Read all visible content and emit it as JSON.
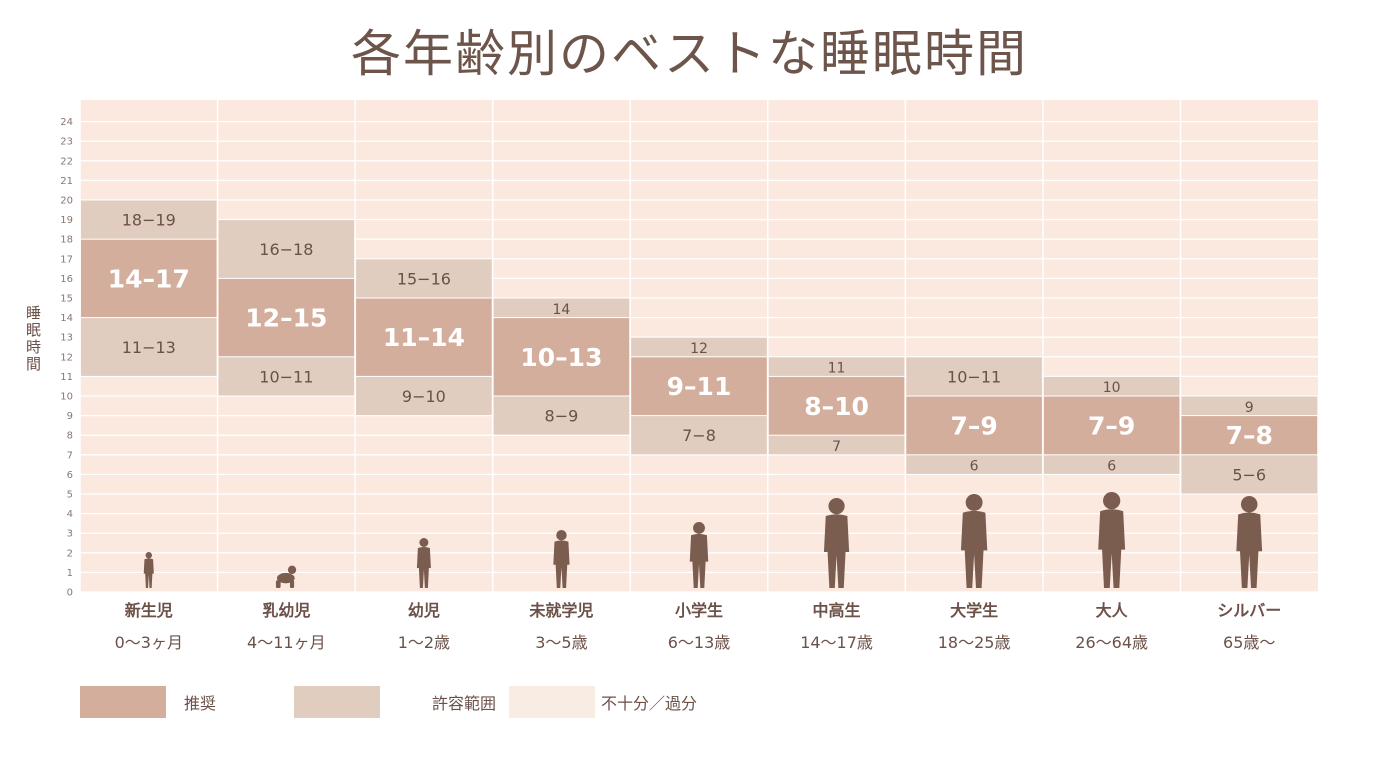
{
  "chart_data": {
    "type": "bar",
    "title": "各年齢別のベストな睡眠時間",
    "ylabel": "睡眠時間",
    "ylim": [
      0,
      24
    ],
    "yticks": [
      0,
      1,
      2,
      3,
      4,
      5,
      6,
      7,
      8,
      9,
      10,
      11,
      12,
      13,
      14,
      15,
      16,
      17,
      18,
      19,
      20,
      21,
      22,
      23,
      24
    ],
    "grid": true,
    "legend_position": "bottom-left",
    "legend": [
      {
        "key": "recommended",
        "label": "推奨",
        "color": "#d4ae9c"
      },
      {
        "key": "acceptable",
        "label": "許容範囲",
        "color": "#e0cdc0"
      },
      {
        "key": "not_recommended",
        "label": "不十分／過分",
        "color": "#f8ece3"
      }
    ],
    "categories": [
      {
        "name": "新生児",
        "age": "0〜3ヶ月",
        "recommended": [
          14,
          17
        ],
        "recommended_label": "14–17",
        "acceptable_low": [
          11,
          13
        ],
        "acceptable_low_label": "11−13",
        "acceptable_high": [
          18,
          19
        ],
        "acceptable_high_label": "18−19",
        "icon": "newborn-silhouette"
      },
      {
        "name": "乳幼児",
        "age": "4〜11ヶ月",
        "recommended": [
          12,
          15
        ],
        "recommended_label": "12–15",
        "acceptable_low": [
          10,
          11
        ],
        "acceptable_low_label": "10−11",
        "acceptable_high": [
          16,
          18
        ],
        "acceptable_high_label": "16−18",
        "icon": "crawling-baby-silhouette"
      },
      {
        "name": "幼児",
        "age": "1〜2歳",
        "recommended": [
          11,
          14
        ],
        "recommended_label": "11–14",
        "acceptable_low": [
          9,
          10
        ],
        "acceptable_low_label": "9−10",
        "acceptable_high": [
          15,
          16
        ],
        "acceptable_high_label": "15−16",
        "icon": "toddler-silhouette"
      },
      {
        "name": "未就学児",
        "age": "3〜5歳",
        "recommended": [
          10,
          13
        ],
        "recommended_label": "10–13",
        "acceptable_low": [
          8,
          9
        ],
        "acceptable_low_label": "8−9",
        "acceptable_high": [
          14,
          14
        ],
        "acceptable_high_label": "14",
        "icon": "preschooler-silhouette"
      },
      {
        "name": "小学生",
        "age": "6〜13歳",
        "recommended": [
          9,
          11
        ],
        "recommended_label": "9–11",
        "acceptable_low": [
          7,
          8
        ],
        "acceptable_low_label": "7−8",
        "acceptable_high": [
          12,
          12
        ],
        "acceptable_high_label": "12",
        "icon": "child-silhouette"
      },
      {
        "name": "中高生",
        "age": "14〜17歳",
        "recommended": [
          8,
          10
        ],
        "recommended_label": "8–10",
        "acceptable_low": [
          7,
          7
        ],
        "acceptable_low_label": "7",
        "acceptable_high": [
          11,
          11
        ],
        "acceptable_high_label": "11",
        "icon": "teen-silhouette"
      },
      {
        "name": "大学生",
        "age": "18〜25歳",
        "recommended": [
          7,
          9
        ],
        "recommended_label": "7–9",
        "acceptable_low": [
          6,
          6
        ],
        "acceptable_low_label": "6",
        "acceptable_high": [
          10,
          11
        ],
        "acceptable_high_label": "10−11",
        "icon": "young-woman-silhouette"
      },
      {
        "name": "大人",
        "age": "26〜64歳",
        "recommended": [
          7,
          9
        ],
        "recommended_label": "7–9",
        "acceptable_low": [
          6,
          6
        ],
        "acceptable_low_label": "6",
        "acceptable_high": [
          10,
          10
        ],
        "acceptable_high_label": "10",
        "icon": "adult-silhouette"
      },
      {
        "name": "シルバー",
        "age": "65歳〜",
        "recommended": [
          7,
          8
        ],
        "recommended_label": "7–8",
        "acceptable_low": [
          5,
          6
        ],
        "acceptable_low_label": "5−6",
        "acceptable_high": [
          9,
          9
        ],
        "acceptable_high_label": "9",
        "icon": "senior-silhouette"
      }
    ],
    "colors": {
      "background": "#fbe8de",
      "text": "#6b5148",
      "silhouette": "#7b5d50",
      "recommended_text": "#ffffff"
    }
  }
}
